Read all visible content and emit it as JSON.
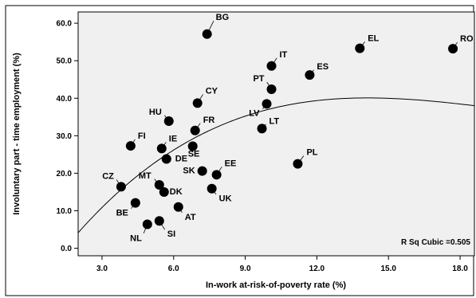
{
  "chart_data": {
    "type": "scatter",
    "xlabel": "In-work at-risk-of-poverty rate (%)",
    "ylabel": "Involuntary part - time employment (%)",
    "xlim": [
      2.0,
      18.6
    ],
    "ylim": [
      -2.0,
      63.0
    ],
    "x_ticks": [
      3.0,
      6.0,
      9.0,
      12.0,
      15.0,
      18.0
    ],
    "x_tick_labels": [
      "3.0",
      "6.0",
      "9.0",
      "12.0",
      "15.0",
      "18.0"
    ],
    "y_ticks": [
      0.0,
      10.0,
      20.0,
      30.0,
      40.0,
      50.0,
      60.0
    ],
    "y_tick_labels": [
      "0.0",
      "10.0",
      "20.0",
      "30.0",
      "40.0",
      "50.0",
      "60.0"
    ],
    "grid": false,
    "annotation": "R Sq Cubic =0.505",
    "points": [
      {
        "label": "BG",
        "x": 7.4,
        "y": 57.1
      },
      {
        "label": "EL",
        "x": 13.8,
        "y": 53.3
      },
      {
        "label": "RO",
        "x": 17.7,
        "y": 53.2
      },
      {
        "label": "IT",
        "x": 10.1,
        "y": 48.6
      },
      {
        "label": "ES",
        "x": 11.7,
        "y": 46.2
      },
      {
        "label": "PT",
        "x": 10.1,
        "y": 42.4
      },
      {
        "label": "CY",
        "x": 7.0,
        "y": 38.7
      },
      {
        "label": "LV",
        "x": 9.9,
        "y": 38.5
      },
      {
        "label": "HU",
        "x": 5.8,
        "y": 33.9
      },
      {
        "label": "LT",
        "x": 9.7,
        "y": 31.9
      },
      {
        "label": "FR",
        "x": 6.9,
        "y": 31.4
      },
      {
        "label": "FI",
        "x": 4.2,
        "y": 27.3
      },
      {
        "label": "IE",
        "x": 5.5,
        "y": 26.6
      },
      {
        "label": "SE",
        "x": 6.8,
        "y": 27.2
      },
      {
        "label": "DE",
        "x": 5.7,
        "y": 23.8
      },
      {
        "label": "PL",
        "x": 11.2,
        "y": 22.5
      },
      {
        "label": "SK",
        "x": 7.2,
        "y": 20.6
      },
      {
        "label": "EE",
        "x": 7.8,
        "y": 19.6
      },
      {
        "label": "CZ",
        "x": 3.8,
        "y": 16.4
      },
      {
        "label": "MT",
        "x": 5.4,
        "y": 16.9
      },
      {
        "label": "UK",
        "x": 7.6,
        "y": 15.9
      },
      {
        "label": "DK",
        "x": 5.6,
        "y": 15.0
      },
      {
        "label": "BE",
        "x": 4.4,
        "y": 12.1
      },
      {
        "label": "AT",
        "x": 6.2,
        "y": 11.0
      },
      {
        "label": "SI",
        "x": 5.4,
        "y": 7.3
      },
      {
        "label": "NL",
        "x": 4.9,
        "y": 6.4
      }
    ],
    "fit": {
      "type": "cubic",
      "coefficients": [
        -12.1,
        9.085,
        -0.5017,
        0.0085
      ]
    }
  }
}
